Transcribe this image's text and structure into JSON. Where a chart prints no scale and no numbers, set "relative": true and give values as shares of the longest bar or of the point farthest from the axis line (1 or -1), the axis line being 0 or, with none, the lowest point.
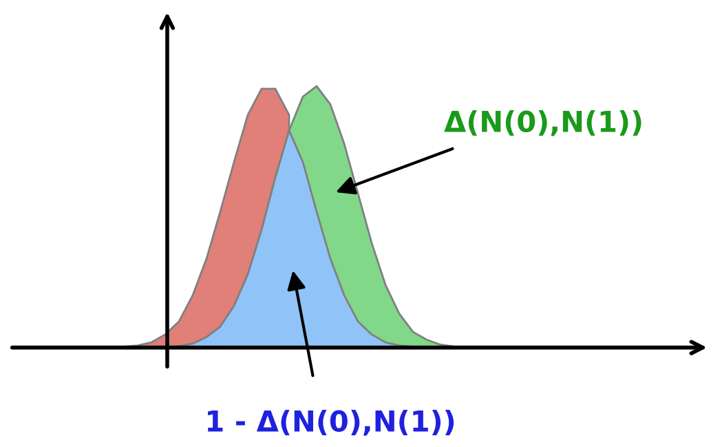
{
  "chart_data": {
    "type": "area",
    "relative": true,
    "categories": [
      null,
      null,
      null,
      null,
      null,
      null,
      null,
      null,
      null,
      null,
      null,
      null,
      null,
      null,
      null,
      null,
      null,
      null,
      null,
      null,
      null,
      null,
      null,
      null,
      null,
      null,
      null,
      null,
      null
    ],
    "series": [
      {
        "color": "#e08078",
        "values": [
          0,
          0.003,
          0.008,
          0.02,
          0.05,
          0.1,
          0.2,
          0.34,
          0.52,
          0.71,
          0.89,
          0.99,
          0.99,
          0.89,
          null,
          null,
          null,
          null,
          null,
          null,
          null,
          null,
          null,
          null,
          null,
          null,
          null,
          null,
          null
        ]
      },
      {
        "color": "#80d888",
        "values": [
          0,
          0,
          0,
          0,
          0,
          0.005,
          0.015,
          0.04,
          0.08,
          0.16,
          0.28,
          0.45,
          0.65,
          0.83,
          0.96,
          1.0,
          0.93,
          0.78,
          0.59,
          0.4,
          0.24,
          0.13,
          0.06,
          0.03,
          0.011,
          0.004,
          0,
          0,
          0
        ]
      },
      {
        "color": "#90c4f8",
        "values": [
          0,
          0,
          0,
          0,
          0,
          0.005,
          0.015,
          0.04,
          0.08,
          0.16,
          0.28,
          0.45,
          0.65,
          0.83,
          0.71,
          0.52,
          0.34,
          0.2,
          0.1,
          0.05,
          0.02,
          0.008,
          0.003,
          0,
          0,
          0,
          0,
          0,
          0
        ]
      }
    ],
    "annotations": [
      "Δ(N(0),N(1))",
      "1 - Δ(N(0),N(1))"
    ]
  }
}
